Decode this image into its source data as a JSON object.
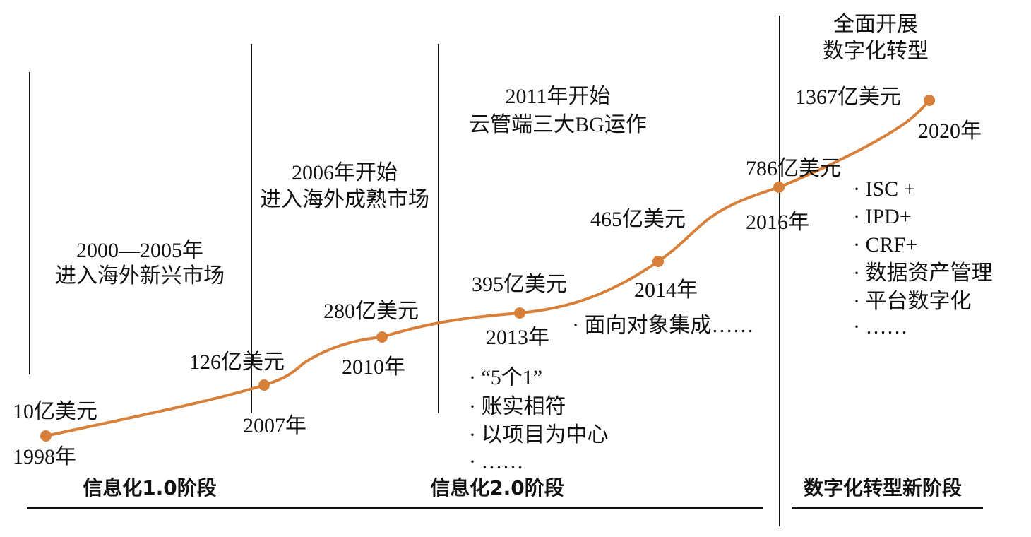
{
  "chart_data": {
    "type": "line",
    "accent_color": "#d8803a",
    "points": [
      {
        "year": "1998年",
        "value": "10亿美元"
      },
      {
        "year": "2007年",
        "value": "126亿美元"
      },
      {
        "year": "2010年",
        "value": "280亿美元"
      },
      {
        "year": "2013年",
        "value": "395亿美元"
      },
      {
        "year": "2014年",
        "value": "465亿美元"
      },
      {
        "year": "2016年",
        "value": "786亿美元"
      },
      {
        "year": "2020年",
        "value": "1367亿美元"
      }
    ],
    "annotations": {
      "overseas_emerging": [
        "2000—2005年",
        "进入海外新兴市场"
      ],
      "overseas_mature": [
        "2006年开始",
        "进入海外成熟市场"
      ],
      "cloud_pipe": [
        "2011年开始",
        "云管端三大BG运作"
      ],
      "digital_full": [
        "全面开展",
        "数字化转型"
      ],
      "object_integration": "· 面向对象集成……",
      "five_in_one": [
        "·  “5个1”",
        "· 账实相符",
        "· 以项目为中心",
        "· ……"
      ],
      "digital_items": [
        "· ISC +",
        "· IPD+",
        "· CRF+",
        "· 数据资产管理",
        "· 平台数字化",
        "· ……"
      ]
    },
    "stages": [
      "信息化1.0阶段",
      "信息化2.0阶段",
      "数字化转型新阶段"
    ]
  }
}
